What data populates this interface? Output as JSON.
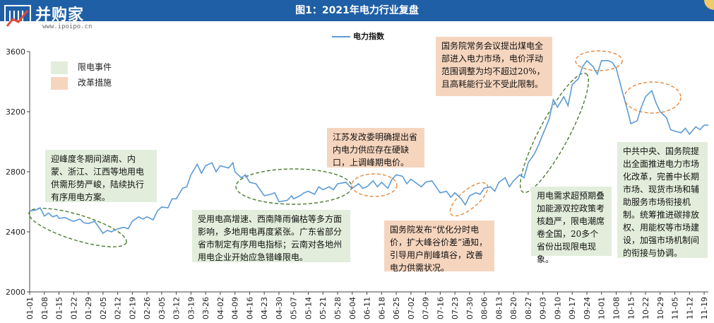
{
  "brand": {
    "name": "并购家",
    "site": "www.ipoipo.cn"
  },
  "colors": {
    "title_bg": "#1f5fa6",
    "line": "#5b9bd5",
    "green_box": "#e2eedb",
    "orange_box": "#f6d5be",
    "green_ellipse": "#4a7a2e",
    "orange_ellipse": "#e58a3c"
  },
  "legend": {
    "green_label": "限电事件",
    "orange_label": "改革措施"
  },
  "annotations": [
    {
      "kind": "green",
      "text": "迎峰度冬期间湖南、内蒙、浙江、江西等地用电供需形势严峻，陆续执行有序用电方案。"
    },
    {
      "kind": "green",
      "text": "受用电高增速、西南降雨偏枯等多方面影响，多地用电再度紧张。广东省部分省市制定有序用电指标；云南对各地州用电企业开始应急错峰限电。"
    },
    {
      "kind": "orange",
      "text": "江苏发改委明确提出省内电力供应存在硬缺口，上调峰期电价。"
    },
    {
      "kind": "orange",
      "text": "国务院发布“优化分时电价，扩大峰谷价差”通知，引导用户削峰填谷，改善电力供需状况。"
    },
    {
      "kind": "orange",
      "text": "国务院常务会议提出煤电全部进入电力市场，电价浮动范围调整为均不超过20%，且高耗能行业不受此限制。"
    },
    {
      "kind": "green",
      "text": "用电需求超预期叠加能源双控政策考核趋严，限电潮席卷全国，20多个省份出现限电现象。"
    },
    {
      "kind": "green",
      "text": "中共中央、国务院提出全面推进电力市场化改革，完善中长期市场、现货市场和辅助服务市场衔接机制。统筹推进碳排放权、用能权等市场建设，加强市场机制间的衔接与协调。"
    }
  ],
  "chart_data": {
    "type": "line",
    "title": "图1：2021年电力行业复盘",
    "series": [
      {
        "name": "电力指数",
        "color": "#5b9bd5"
      }
    ],
    "ylim": [
      2000,
      3600
    ],
    "yticks": [
      2000,
      2400,
      2800,
      3200,
      3600
    ],
    "xticks": [
      "01-01",
      "01-08",
      "01-15",
      "01-22",
      "01-29",
      "02-05",
      "02-12",
      "02-19",
      "02-26",
      "03-05",
      "03-12",
      "03-19",
      "03-26",
      "04-02",
      "04-09",
      "04-16",
      "04-23",
      "04-30",
      "05-07",
      "05-14",
      "05-21",
      "05-28",
      "06-04",
      "06-11",
      "06-18",
      "06-25",
      "07-02",
      "07-09",
      "07-16",
      "07-23",
      "07-30",
      "08-06",
      "08-13",
      "08-20",
      "08-27",
      "09-03",
      "09-10",
      "09-17",
      "09-24",
      "10-01",
      "10-08",
      "10-15",
      "10-22",
      "10-29",
      "11-05",
      "11-12",
      "11-19"
    ],
    "points": [
      [
        "01-01",
        2540
      ],
      [
        "01-04",
        2545
      ],
      [
        "01-06",
        2560
      ],
      [
        "01-08",
        2505
      ],
      [
        "01-10",
        2525
      ],
      [
        "01-12",
        2500
      ],
      [
        "01-14",
        2510
      ],
      [
        "01-15",
        2490
      ],
      [
        "01-18",
        2495
      ],
      [
        "01-20",
        2480
      ],
      [
        "01-22",
        2470
      ],
      [
        "01-25",
        2485
      ],
      [
        "01-27",
        2460
      ],
      [
        "01-29",
        2455
      ],
      [
        "02-01",
        2470
      ],
      [
        "02-03",
        2430
      ],
      [
        "02-05",
        2390
      ],
      [
        "02-07",
        2410
      ],
      [
        "02-09",
        2400
      ],
      [
        "02-12",
        2420
      ],
      [
        "02-15",
        2430
      ],
      [
        "02-17",
        2420
      ],
      [
        "02-19",
        2470
      ],
      [
        "02-22",
        2500
      ],
      [
        "02-24",
        2485
      ],
      [
        "02-26",
        2500
      ],
      [
        "03-01",
        2480
      ],
      [
        "03-03",
        2540
      ],
      [
        "03-05",
        2565
      ],
      [
        "03-08",
        2560
      ],
      [
        "03-10",
        2620
      ],
      [
        "03-12",
        2620
      ],
      [
        "03-15",
        2690
      ],
      [
        "03-17",
        2700
      ],
      [
        "03-19",
        2780
      ],
      [
        "03-22",
        2850
      ],
      [
        "03-24",
        2790
      ],
      [
        "03-26",
        2840
      ],
      [
        "03-29",
        2860
      ],
      [
        "03-31",
        2800
      ],
      [
        "04-02",
        2840
      ],
      [
        "04-06",
        2825
      ],
      [
        "04-08",
        2860
      ],
      [
        "04-09",
        2800
      ],
      [
        "04-12",
        2760
      ],
      [
        "04-14",
        2780
      ],
      [
        "04-16",
        2730
      ],
      [
        "04-19",
        2720
      ],
      [
        "04-21",
        2680
      ],
      [
        "04-23",
        2640
      ],
      [
        "04-26",
        2650
      ],
      [
        "04-28",
        2660
      ],
      [
        "04-30",
        2600
      ],
      [
        "05-04",
        2610
      ],
      [
        "05-06",
        2640
      ],
      [
        "05-07",
        2620
      ],
      [
        "05-10",
        2640
      ],
      [
        "05-12",
        2660
      ],
      [
        "05-14",
        2670
      ],
      [
        "05-17",
        2650
      ],
      [
        "05-19",
        2700
      ],
      [
        "05-21",
        2680
      ],
      [
        "05-24",
        2700
      ],
      [
        "05-26",
        2680
      ],
      [
        "05-28",
        2720
      ],
      [
        "06-01",
        2730
      ],
      [
        "06-03",
        2700
      ],
      [
        "06-04",
        2690
      ],
      [
        "06-07",
        2720
      ],
      [
        "06-09",
        2690
      ],
      [
        "06-11",
        2700
      ],
      [
        "06-14",
        2740
      ],
      [
        "06-16",
        2700
      ],
      [
        "06-18",
        2730
      ],
      [
        "06-21",
        2690
      ],
      [
        "06-23",
        2750
      ],
      [
        "06-25",
        2780
      ],
      [
        "06-28",
        2770
      ],
      [
        "06-30",
        2720
      ],
      [
        "07-02",
        2750
      ],
      [
        "07-05",
        2720
      ],
      [
        "07-07",
        2700
      ],
      [
        "07-09",
        2730
      ],
      [
        "07-12",
        2740
      ],
      [
        "07-14",
        2700
      ],
      [
        "07-16",
        2660
      ],
      [
        "07-19",
        2670
      ],
      [
        "07-21",
        2630
      ],
      [
        "07-23",
        2660
      ],
      [
        "07-26",
        2620
      ],
      [
        "07-28",
        2580
      ],
      [
        "07-30",
        2640
      ],
      [
        "08-02",
        2660
      ],
      [
        "08-04",
        2650
      ],
      [
        "08-06",
        2690
      ],
      [
        "08-09",
        2700
      ],
      [
        "08-11",
        2670
      ],
      [
        "08-13",
        2730
      ],
      [
        "08-16",
        2760
      ],
      [
        "08-18",
        2700
      ],
      [
        "08-20",
        2740
      ],
      [
        "08-23",
        2780
      ],
      [
        "08-25",
        2760
      ],
      [
        "08-27",
        2860
      ],
      [
        "08-30",
        2920
      ],
      [
        "09-01",
        2980
      ],
      [
        "09-03",
        3050
      ],
      [
        "09-06",
        3150
      ],
      [
        "09-08",
        3280
      ],
      [
        "09-10",
        3230
      ],
      [
        "09-13",
        3300
      ],
      [
        "09-15",
        3240
      ],
      [
        "09-17",
        3380
      ],
      [
        "09-20",
        3420
      ],
      [
        "09-22",
        3500
      ],
      [
        "09-24",
        3540
      ],
      [
        "09-27",
        3500
      ],
      [
        "09-29",
        3450
      ],
      [
        "10-01",
        3540
      ],
      [
        "10-04",
        3540
      ],
      [
        "10-06",
        3530
      ],
      [
        "10-08",
        3490
      ],
      [
        "10-11",
        3330
      ],
      [
        "10-13",
        3230
      ],
      [
        "10-15",
        3120
      ],
      [
        "10-18",
        3140
      ],
      [
        "10-20",
        3230
      ],
      [
        "10-22",
        3300
      ],
      [
        "10-25",
        3340
      ],
      [
        "10-27",
        3260
      ],
      [
        "10-29",
        3200
      ],
      [
        "11-01",
        3160
      ],
      [
        "11-03",
        3080
      ],
      [
        "11-05",
        3070
      ],
      [
        "11-08",
        3060
      ],
      [
        "11-10",
        3090
      ],
      [
        "11-12",
        3050
      ],
      [
        "11-15",
        3100
      ],
      [
        "11-17",
        3080
      ],
      [
        "11-19",
        3110
      ],
      [
        "11-21",
        3110
      ]
    ]
  }
}
